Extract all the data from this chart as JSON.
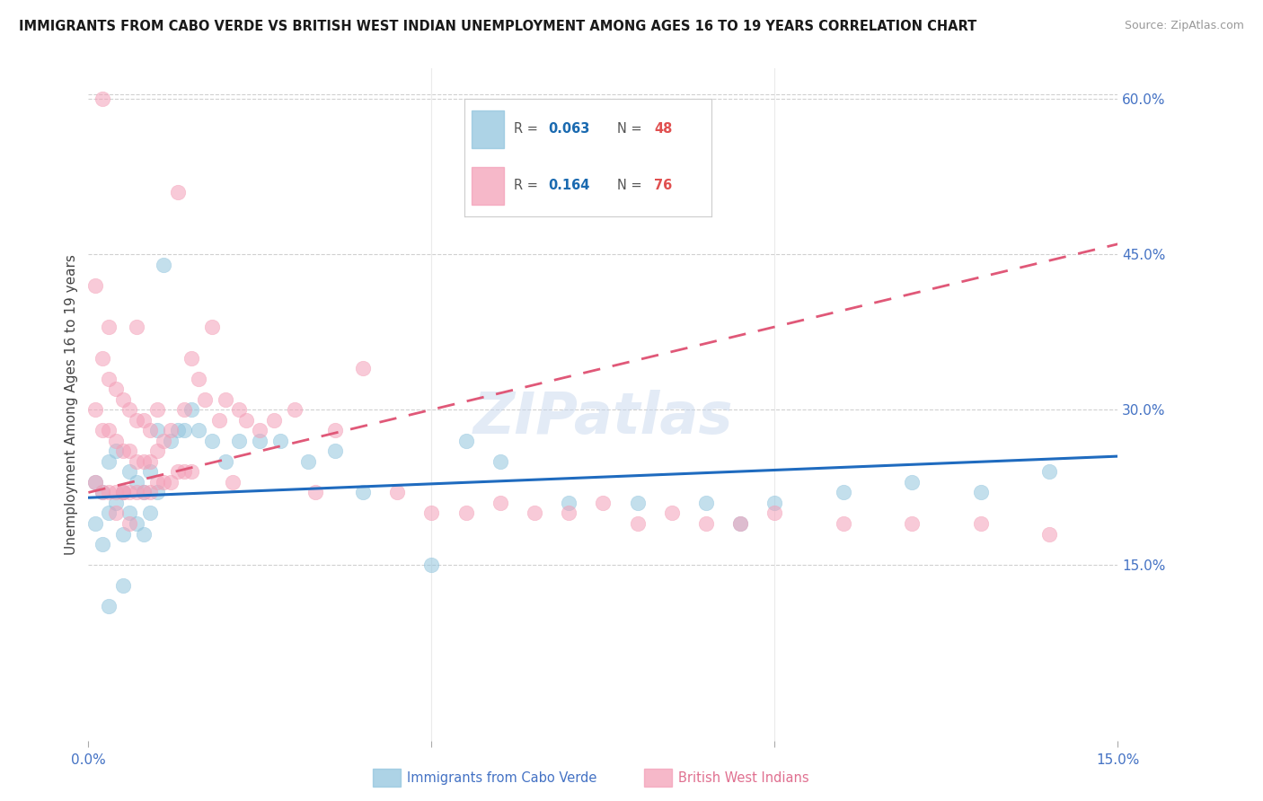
{
  "title": "IMMIGRANTS FROM CABO VERDE VS BRITISH WEST INDIAN UNEMPLOYMENT AMONG AGES 16 TO 19 YEARS CORRELATION CHART",
  "source": "Source: ZipAtlas.com",
  "ylabel_label": "Unemployment Among Ages 16 to 19 years",
  "xlim": [
    0.0,
    0.15
  ],
  "ylim": [
    -0.02,
    0.63
  ],
  "watermark": "ZIPatlas",
  "blue_color": "#92c5de",
  "pink_color": "#f4a0b8",
  "line_blue": "#1f6bbf",
  "line_pink": "#e05878",
  "cv_x": [
    0.001,
    0.001,
    0.002,
    0.002,
    0.003,
    0.003,
    0.004,
    0.004,
    0.005,
    0.005,
    0.006,
    0.006,
    0.007,
    0.007,
    0.008,
    0.008,
    0.009,
    0.009,
    0.01,
    0.01,
    0.011,
    0.012,
    0.013,
    0.014,
    0.015,
    0.016,
    0.018,
    0.02,
    0.022,
    0.025,
    0.028,
    0.032,
    0.036,
    0.04,
    0.05,
    0.055,
    0.06,
    0.07,
    0.08,
    0.09,
    0.095,
    0.1,
    0.11,
    0.12,
    0.13,
    0.14,
    0.003,
    0.005
  ],
  "cv_y": [
    0.23,
    0.19,
    0.22,
    0.17,
    0.25,
    0.2,
    0.26,
    0.21,
    0.22,
    0.18,
    0.24,
    0.2,
    0.23,
    0.19,
    0.22,
    0.18,
    0.24,
    0.2,
    0.28,
    0.22,
    0.44,
    0.27,
    0.28,
    0.28,
    0.3,
    0.28,
    0.27,
    0.25,
    0.27,
    0.27,
    0.27,
    0.25,
    0.26,
    0.22,
    0.15,
    0.27,
    0.25,
    0.21,
    0.21,
    0.21,
    0.19,
    0.21,
    0.22,
    0.23,
    0.22,
    0.24,
    0.11,
    0.13
  ],
  "bwi_x": [
    0.001,
    0.001,
    0.001,
    0.002,
    0.002,
    0.002,
    0.003,
    0.003,
    0.003,
    0.004,
    0.004,
    0.004,
    0.005,
    0.005,
    0.005,
    0.006,
    0.006,
    0.006,
    0.007,
    0.007,
    0.007,
    0.008,
    0.008,
    0.008,
    0.009,
    0.009,
    0.009,
    0.01,
    0.01,
    0.01,
    0.011,
    0.011,
    0.012,
    0.012,
    0.013,
    0.013,
    0.014,
    0.014,
    0.015,
    0.015,
    0.016,
    0.017,
    0.018,
    0.019,
    0.02,
    0.021,
    0.022,
    0.023,
    0.025,
    0.027,
    0.03,
    0.033,
    0.036,
    0.04,
    0.045,
    0.05,
    0.055,
    0.06,
    0.065,
    0.07,
    0.075,
    0.08,
    0.085,
    0.09,
    0.095,
    0.1,
    0.11,
    0.12,
    0.13,
    0.14,
    0.002,
    0.003,
    0.004,
    0.005,
    0.006,
    0.007
  ],
  "bwi_y": [
    0.23,
    0.3,
    0.42,
    0.22,
    0.28,
    0.35,
    0.22,
    0.28,
    0.33,
    0.22,
    0.27,
    0.32,
    0.22,
    0.26,
    0.31,
    0.22,
    0.26,
    0.3,
    0.22,
    0.25,
    0.29,
    0.22,
    0.25,
    0.29,
    0.22,
    0.25,
    0.28,
    0.23,
    0.26,
    0.3,
    0.23,
    0.27,
    0.23,
    0.28,
    0.24,
    0.51,
    0.24,
    0.3,
    0.24,
    0.35,
    0.33,
    0.31,
    0.38,
    0.29,
    0.31,
    0.23,
    0.3,
    0.29,
    0.28,
    0.29,
    0.3,
    0.22,
    0.28,
    0.34,
    0.22,
    0.2,
    0.2,
    0.21,
    0.2,
    0.2,
    0.21,
    0.19,
    0.2,
    0.19,
    0.19,
    0.2,
    0.19,
    0.19,
    0.19,
    0.18,
    0.6,
    0.38,
    0.2,
    0.22,
    0.19,
    0.38
  ],
  "blue_trend_x": [
    0.0,
    0.15
  ],
  "blue_trend_y": [
    0.215,
    0.255
  ],
  "pink_trend_x": [
    0.0,
    0.15
  ],
  "pink_trend_y": [
    0.22,
    0.46
  ]
}
